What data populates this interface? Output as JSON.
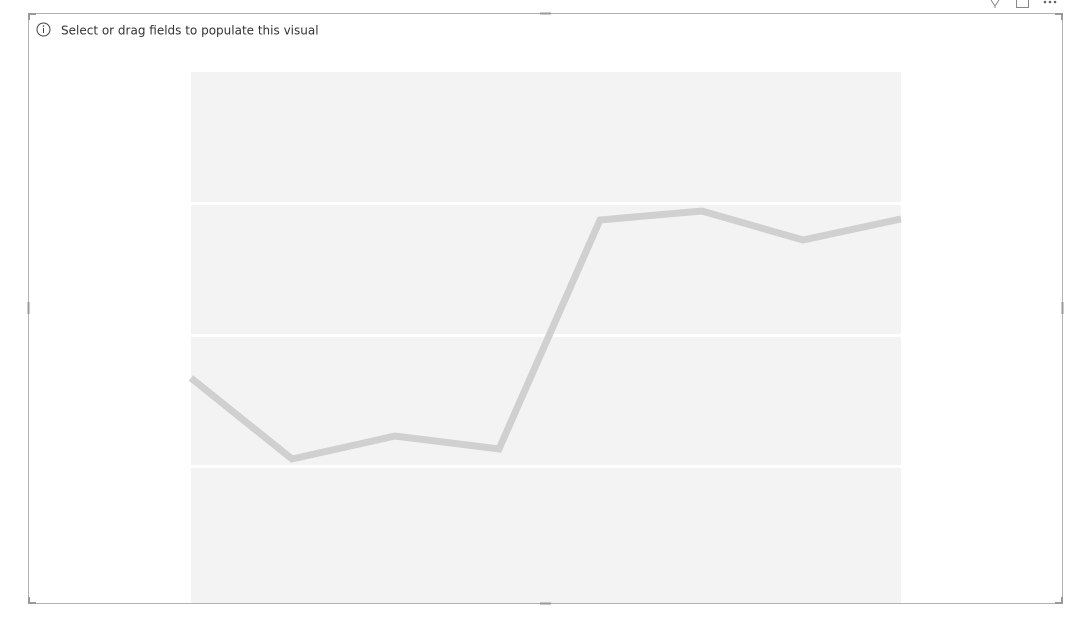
{
  "visual": {
    "message": "Select or drag fields to populate this visual"
  }
}
